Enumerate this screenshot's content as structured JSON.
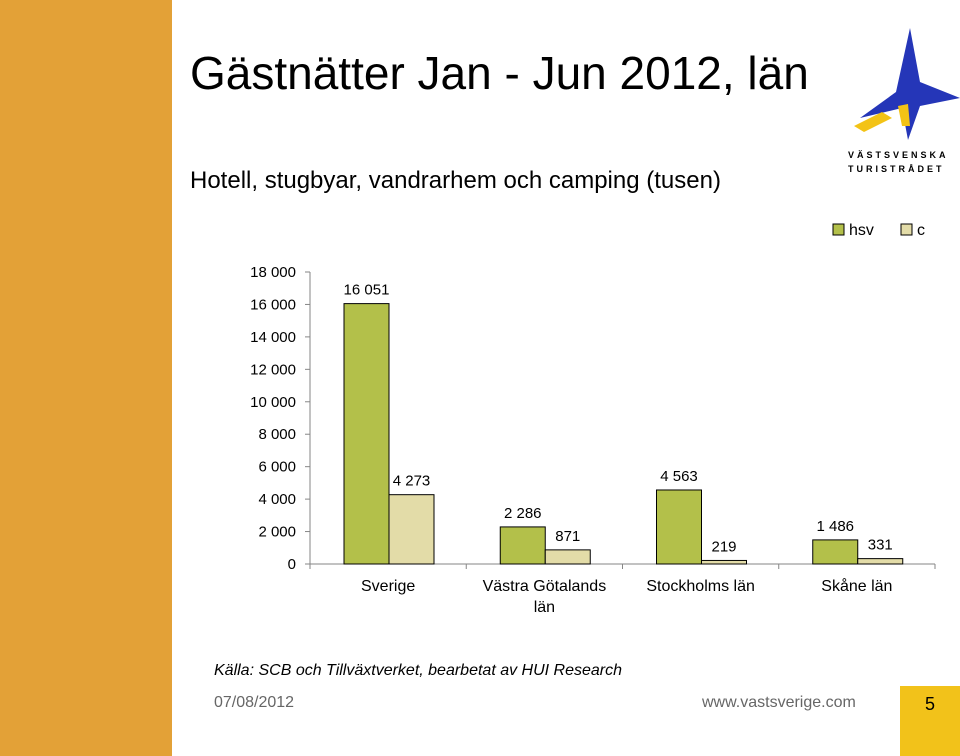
{
  "title": "Gästnätter Jan - Jun 2012, län",
  "subtitle": "Hotell, stugbyar, vandrarhem och camping (tusen)",
  "logo": {
    "line1": "VÄSTSVENSKA",
    "line2": "TURISTRÅDET",
    "icon": "star-logo-icon",
    "colors": {
      "blue": "#2536b8",
      "yellow": "#f3c316"
    }
  },
  "chart_data": {
    "type": "bar",
    "categories": [
      "Sverige",
      "Västra Götalands län",
      "Stockholms län",
      "Skåne län"
    ],
    "series": [
      {
        "name": "hsv",
        "values": [
          16051,
          2286,
          4563,
          1486
        ],
        "labels": [
          "16 051",
          "2 286",
          "4 563",
          "1 486"
        ],
        "color": "#b3c04a"
      },
      {
        "name": "c",
        "values": [
          4273,
          871,
          219,
          331
        ],
        "labels": [
          "4 273",
          "871",
          "219",
          "331"
        ],
        "color": "#e3dca8"
      }
    ],
    "ylim": [
      0,
      18000
    ],
    "yticks": [
      0,
      2000,
      4000,
      6000,
      8000,
      10000,
      12000,
      14000,
      16000,
      18000
    ],
    "ytick_labels": [
      "0",
      "2 000",
      "4 000",
      "6 000",
      "8 000",
      "10 000",
      "12 000",
      "14 000",
      "16 000",
      "18 000"
    ],
    "xlabel": "",
    "ylabel": "",
    "grid": false,
    "legend": "top-right"
  },
  "source": "Källa: SCB och Tillväxtverket, bearbetat av HUI Research",
  "footer": {
    "date": "07/08/2012",
    "url": "www.vastsverige.com",
    "page": "5"
  },
  "colors": {
    "sidebar": "#e3a137",
    "page_box": "#f2c21a"
  }
}
